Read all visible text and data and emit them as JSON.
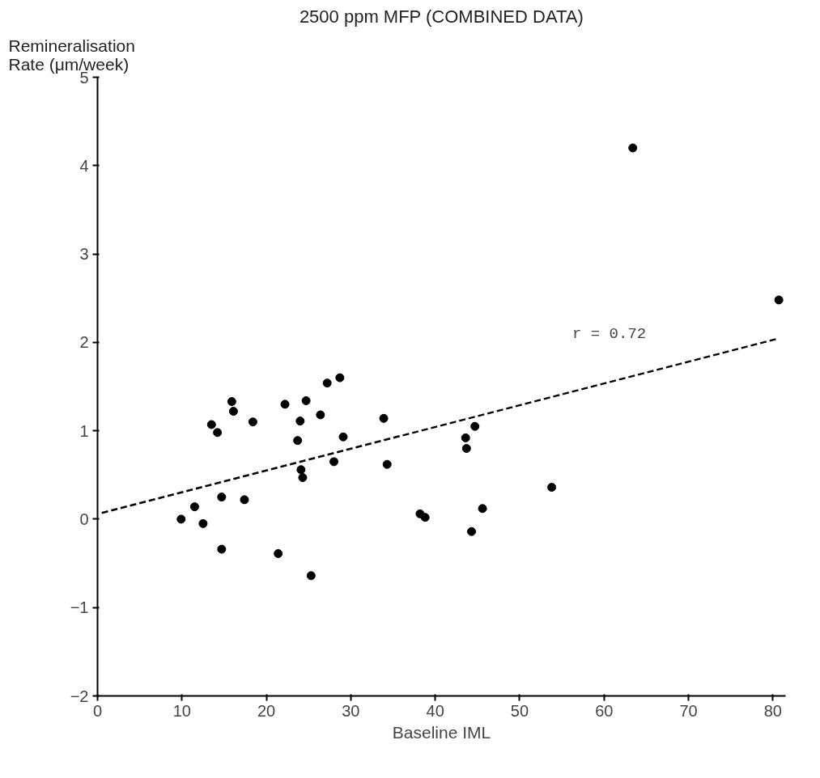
{
  "chart_data": {
    "type": "scatter",
    "title": "2500 ppm MFP (COMBINED DATA)",
    "xlabel": "Baseline IML",
    "ylabel": "Remineralisation\nRate (μm/week)",
    "xlim": [
      0,
      81.5
    ],
    "ylim": [
      -2,
      5
    ],
    "xticks": [
      0,
      10,
      20,
      30,
      40,
      50,
      60,
      70,
      80
    ],
    "yticks": [
      -2,
      -1,
      0,
      1,
      2,
      3,
      4,
      5
    ],
    "grid": false,
    "marker": "circle",
    "series": [
      {
        "color": "#000000",
        "x": [
          9.9,
          11.5,
          12.5,
          14.7,
          14.7,
          17.4,
          13.5,
          14.2,
          15.9,
          16.1,
          18.4,
          21.4,
          22.2,
          23.7,
          24.0,
          24.1,
          24.3,
          24.7,
          25.3,
          26.4,
          27.2,
          28.7,
          29.1,
          28.0,
          33.9,
          34.3,
          38.2,
          38.8,
          43.6,
          43.7,
          44.7,
          45.6,
          44.3,
          53.8,
          63.4,
          80.7
        ],
        "values": [
          0.0,
          0.14,
          -0.05,
          0.25,
          -0.34,
          0.22,
          1.07,
          0.98,
          1.33,
          1.22,
          1.1,
          -0.39,
          1.3,
          0.89,
          1.11,
          0.56,
          0.47,
          1.34,
          -0.64,
          1.18,
          1.54,
          1.6,
          0.93,
          0.65,
          1.14,
          0.62,
          0.06,
          0.02,
          0.92,
          0.8,
          1.05,
          0.12,
          -0.14,
          0.36,
          4.2,
          2.48
        ]
      },
      {
        "type": "line",
        "color": "#000000",
        "line_style": "dashed",
        "marker": "none",
        "x": [
          0.5,
          80.5
        ],
        "values": [
          0.07,
          2.04
        ]
      }
    ],
    "annotations": [
      "r = 0.72"
    ]
  }
}
